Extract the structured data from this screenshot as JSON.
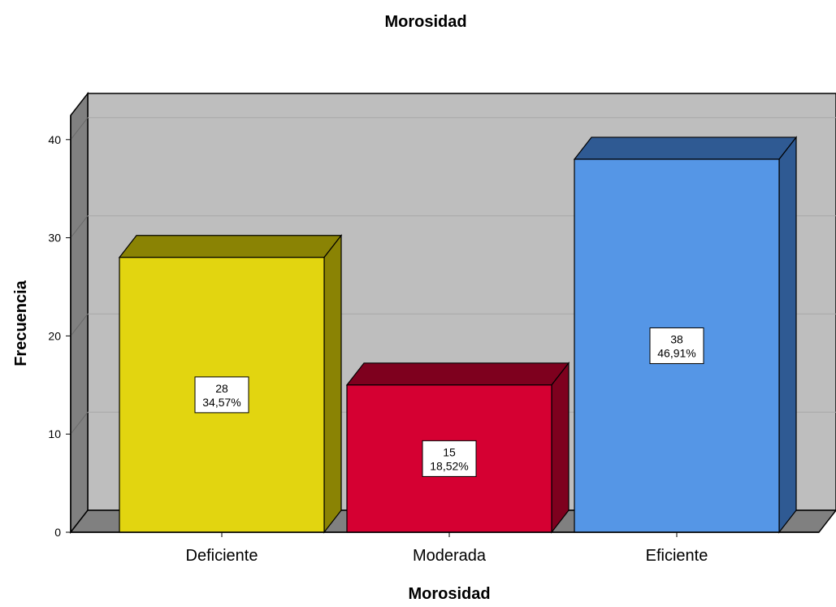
{
  "chart_data": {
    "type": "bar",
    "title": "Morosidad",
    "xlabel": "Morosidad",
    "ylabel": "Frecuencia",
    "categories": [
      "Deficiente",
      "Moderada",
      "Eficiente"
    ],
    "values": [
      28,
      15,
      38
    ],
    "percent_labels": [
      "34,57%",
      "18,52%",
      "46,91%"
    ],
    "ylim": [
      0,
      42
    ],
    "yticks": [
      "0",
      "10",
      "20",
      "30",
      "40"
    ],
    "ytick_values": [
      0,
      10,
      20,
      30,
      40
    ],
    "grid": true,
    "colors": {
      "bars": [
        "#E2D510",
        "#D50032",
        "#5596E6"
      ],
      "bar_sides": [
        "#8A8304",
        "#7E001E",
        "#2F5A93"
      ],
      "plot_background": "#BEBEBE",
      "side_wall": "#808080"
    }
  }
}
